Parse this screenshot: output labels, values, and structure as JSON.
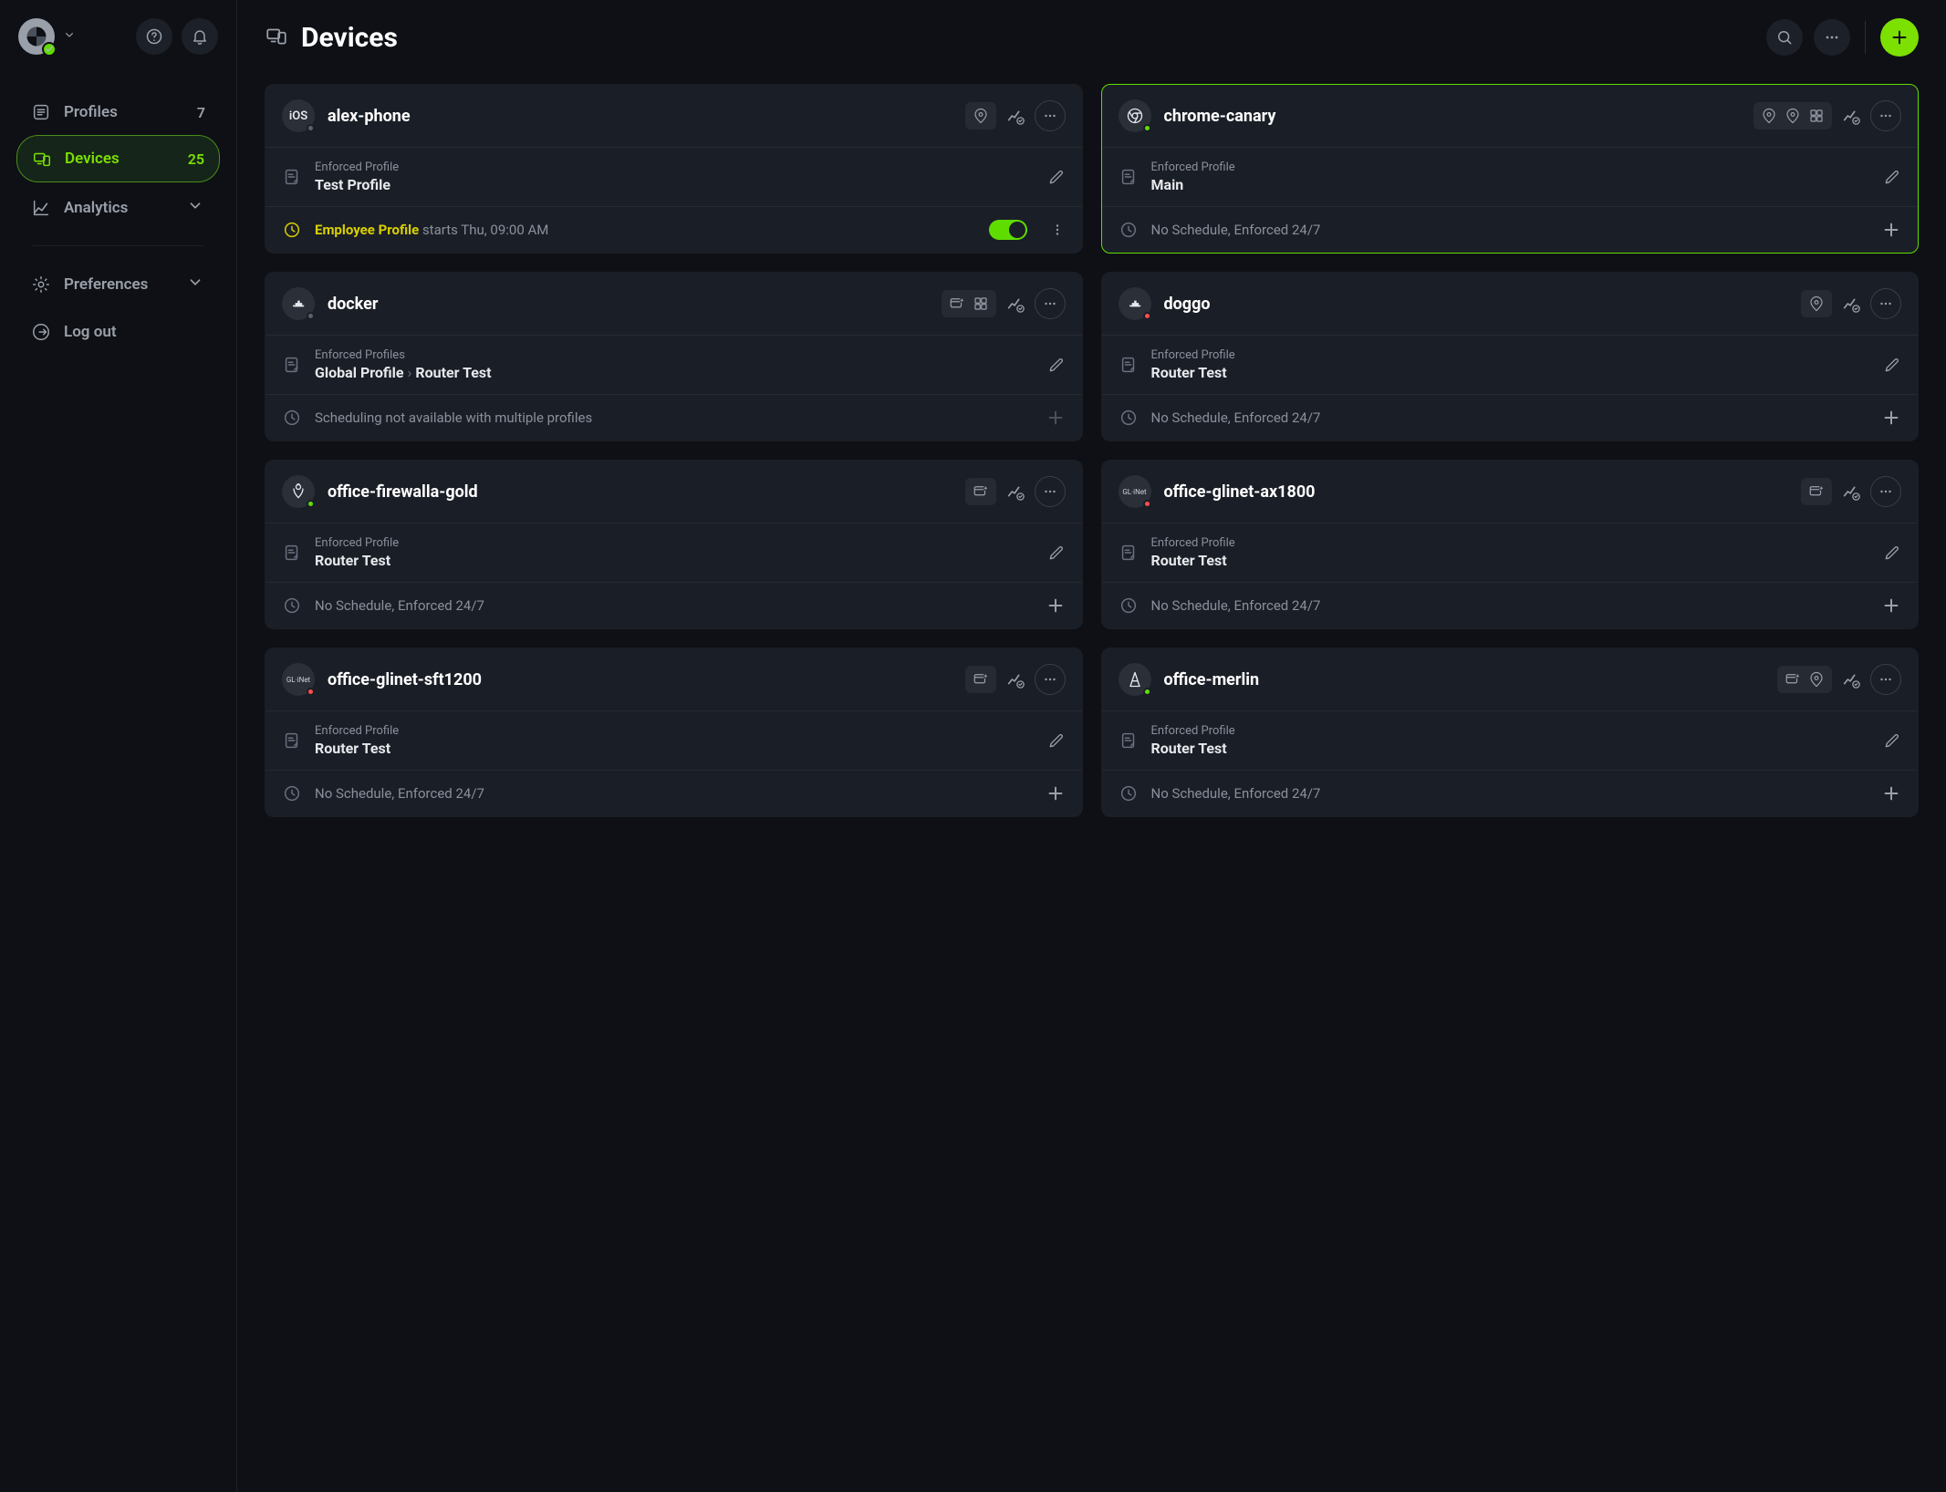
{
  "colors": {
    "background": "#0e1015",
    "card": "#1a1e26",
    "border": "#252a33",
    "accent": "#7ce000",
    "accent_yellow": "#d9d000",
    "text_primary": "#ffffff",
    "text_secondary": "#9aa0aa",
    "text_muted": "#8a909c",
    "status_green": "#5fdd00",
    "status_red": "#ff4d4d",
    "status_gray": "#5a6170"
  },
  "sidebar": {
    "items": [
      {
        "label": "Profiles",
        "count": "7",
        "icon": "sliders"
      },
      {
        "label": "Devices",
        "count": "25",
        "icon": "devices",
        "active": true
      },
      {
        "label": "Analytics",
        "icon": "chart",
        "expandable": true
      },
      {
        "label": "Preferences",
        "icon": "gear",
        "expandable": true
      },
      {
        "label": "Log out",
        "icon": "logout"
      }
    ]
  },
  "page": {
    "title": "Devices"
  },
  "devices": [
    {
      "name": "alex-phone",
      "icon_type": "ios",
      "status": "gray",
      "highlighted": false,
      "badges": [
        "location"
      ],
      "profile_label": "Enforced Profile",
      "profile_value": "Test Profile",
      "schedule_mode": "active",
      "schedule_profile": "Employee Profile",
      "schedule_starts": "starts Thu, 09:00 AM"
    },
    {
      "name": "chrome-canary",
      "icon_type": "chrome",
      "status": "green",
      "highlighted": true,
      "badges": [
        "location",
        "location",
        "grid"
      ],
      "profile_label": "Enforced Profile",
      "profile_value": "Main",
      "schedule_mode": "none",
      "schedule_text": "No Schedule, Enforced 24/7"
    },
    {
      "name": "docker",
      "icon_type": "docker",
      "status": "gray",
      "highlighted": false,
      "badges": [
        "add-window",
        "grid"
      ],
      "profile_label": "Enforced Profiles",
      "profile_value_parts": [
        "Global Profile",
        "Router Test"
      ],
      "schedule_mode": "unavailable",
      "schedule_text": "Scheduling not available with multiple profiles"
    },
    {
      "name": "doggo",
      "icon_type": "docker",
      "status": "red",
      "highlighted": false,
      "badges": [
        "location"
      ],
      "profile_label": "Enforced Profile",
      "profile_value": "Router Test",
      "schedule_mode": "none",
      "schedule_text": "No Schedule, Enforced 24/7"
    },
    {
      "name": "office-firewalla-gold",
      "icon_type": "firewalla",
      "status": "green",
      "highlighted": false,
      "badges": [
        "add-window"
      ],
      "profile_label": "Enforced Profile",
      "profile_value": "Router Test",
      "schedule_mode": "none",
      "schedule_text": "No Schedule, Enforced 24/7"
    },
    {
      "name": "office-glinet-ax1800",
      "icon_type": "glinet",
      "status": "red",
      "highlighted": false,
      "badges": [
        "add-window"
      ],
      "profile_label": "Enforced Profile",
      "profile_value": "Router Test",
      "schedule_mode": "none",
      "schedule_text": "No Schedule, Enforced 24/7"
    },
    {
      "name": "office-glinet-sft1200",
      "icon_type": "glinet",
      "status": "red",
      "highlighted": false,
      "badges": [
        "add-window"
      ],
      "profile_label": "Enforced Profile",
      "profile_value": "Router Test",
      "schedule_mode": "none",
      "schedule_text": "No Schedule, Enforced 24/7"
    },
    {
      "name": "office-merlin",
      "icon_type": "merlin",
      "status": "green",
      "highlighted": false,
      "badges": [
        "add-window",
        "location"
      ],
      "profile_label": "Enforced Profile",
      "profile_value": "Router Test",
      "schedule_mode": "none",
      "schedule_text": "No Schedule, Enforced 24/7"
    }
  ]
}
